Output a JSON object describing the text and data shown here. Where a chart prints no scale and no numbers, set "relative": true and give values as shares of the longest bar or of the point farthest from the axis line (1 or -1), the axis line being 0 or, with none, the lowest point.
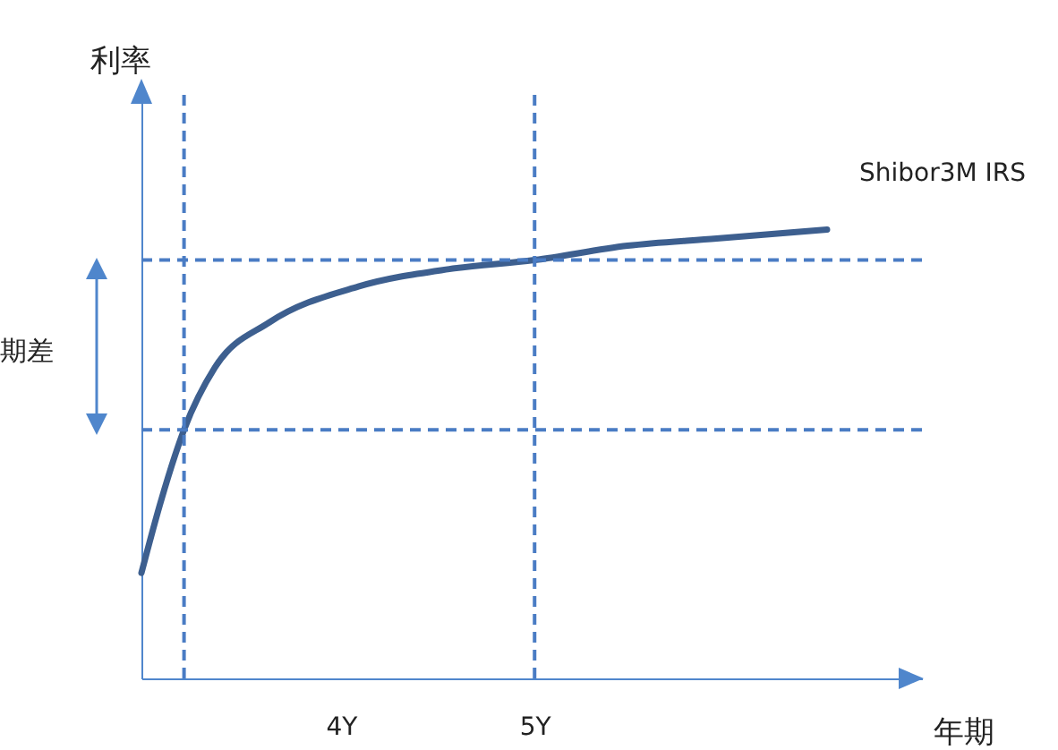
{
  "chart_data": {
    "type": "line",
    "relative": true,
    "xlabel": "年期",
    "ylabel": "利率",
    "x": [
      2.97,
      3.07,
      3.19,
      3.35,
      3.63,
      4.09,
      4.56,
      5.0,
      5.48,
      5.94,
      6.51
    ],
    "xlim": [
      2.97,
      7.0
    ],
    "xticks": [
      {
        "value": 4,
        "label": "4Y"
      },
      {
        "value": 5,
        "label": "5Y"
      }
    ],
    "series": [
      {
        "name": "Shibor3M  IRS",
        "color": "#3d5f8f",
        "values": [
          0.235,
          0.394,
          0.554,
          0.693,
          0.793,
          0.873,
          0.912,
          0.932,
          0.964,
          0.98,
          1
        ]
      }
    ],
    "ref_lines": [
      {
        "axis": "y",
        "value": 0.932,
        "color": "#4a7cc4",
        "line_style": "dashed"
      },
      {
        "axis": "y",
        "value": 0.554,
        "color": "#4a7cc4",
        "line_style": "dashed"
      },
      {
        "axis": "x",
        "value": 3.19,
        "color": "#4a7cc4",
        "line_style": "dashed"
      },
      {
        "axis": "x",
        "value": 5.0,
        "color": "#4a7cc4",
        "line_style": "dashed"
      }
    ],
    "annotations": [
      "期差"
    ],
    "grid": false
  }
}
